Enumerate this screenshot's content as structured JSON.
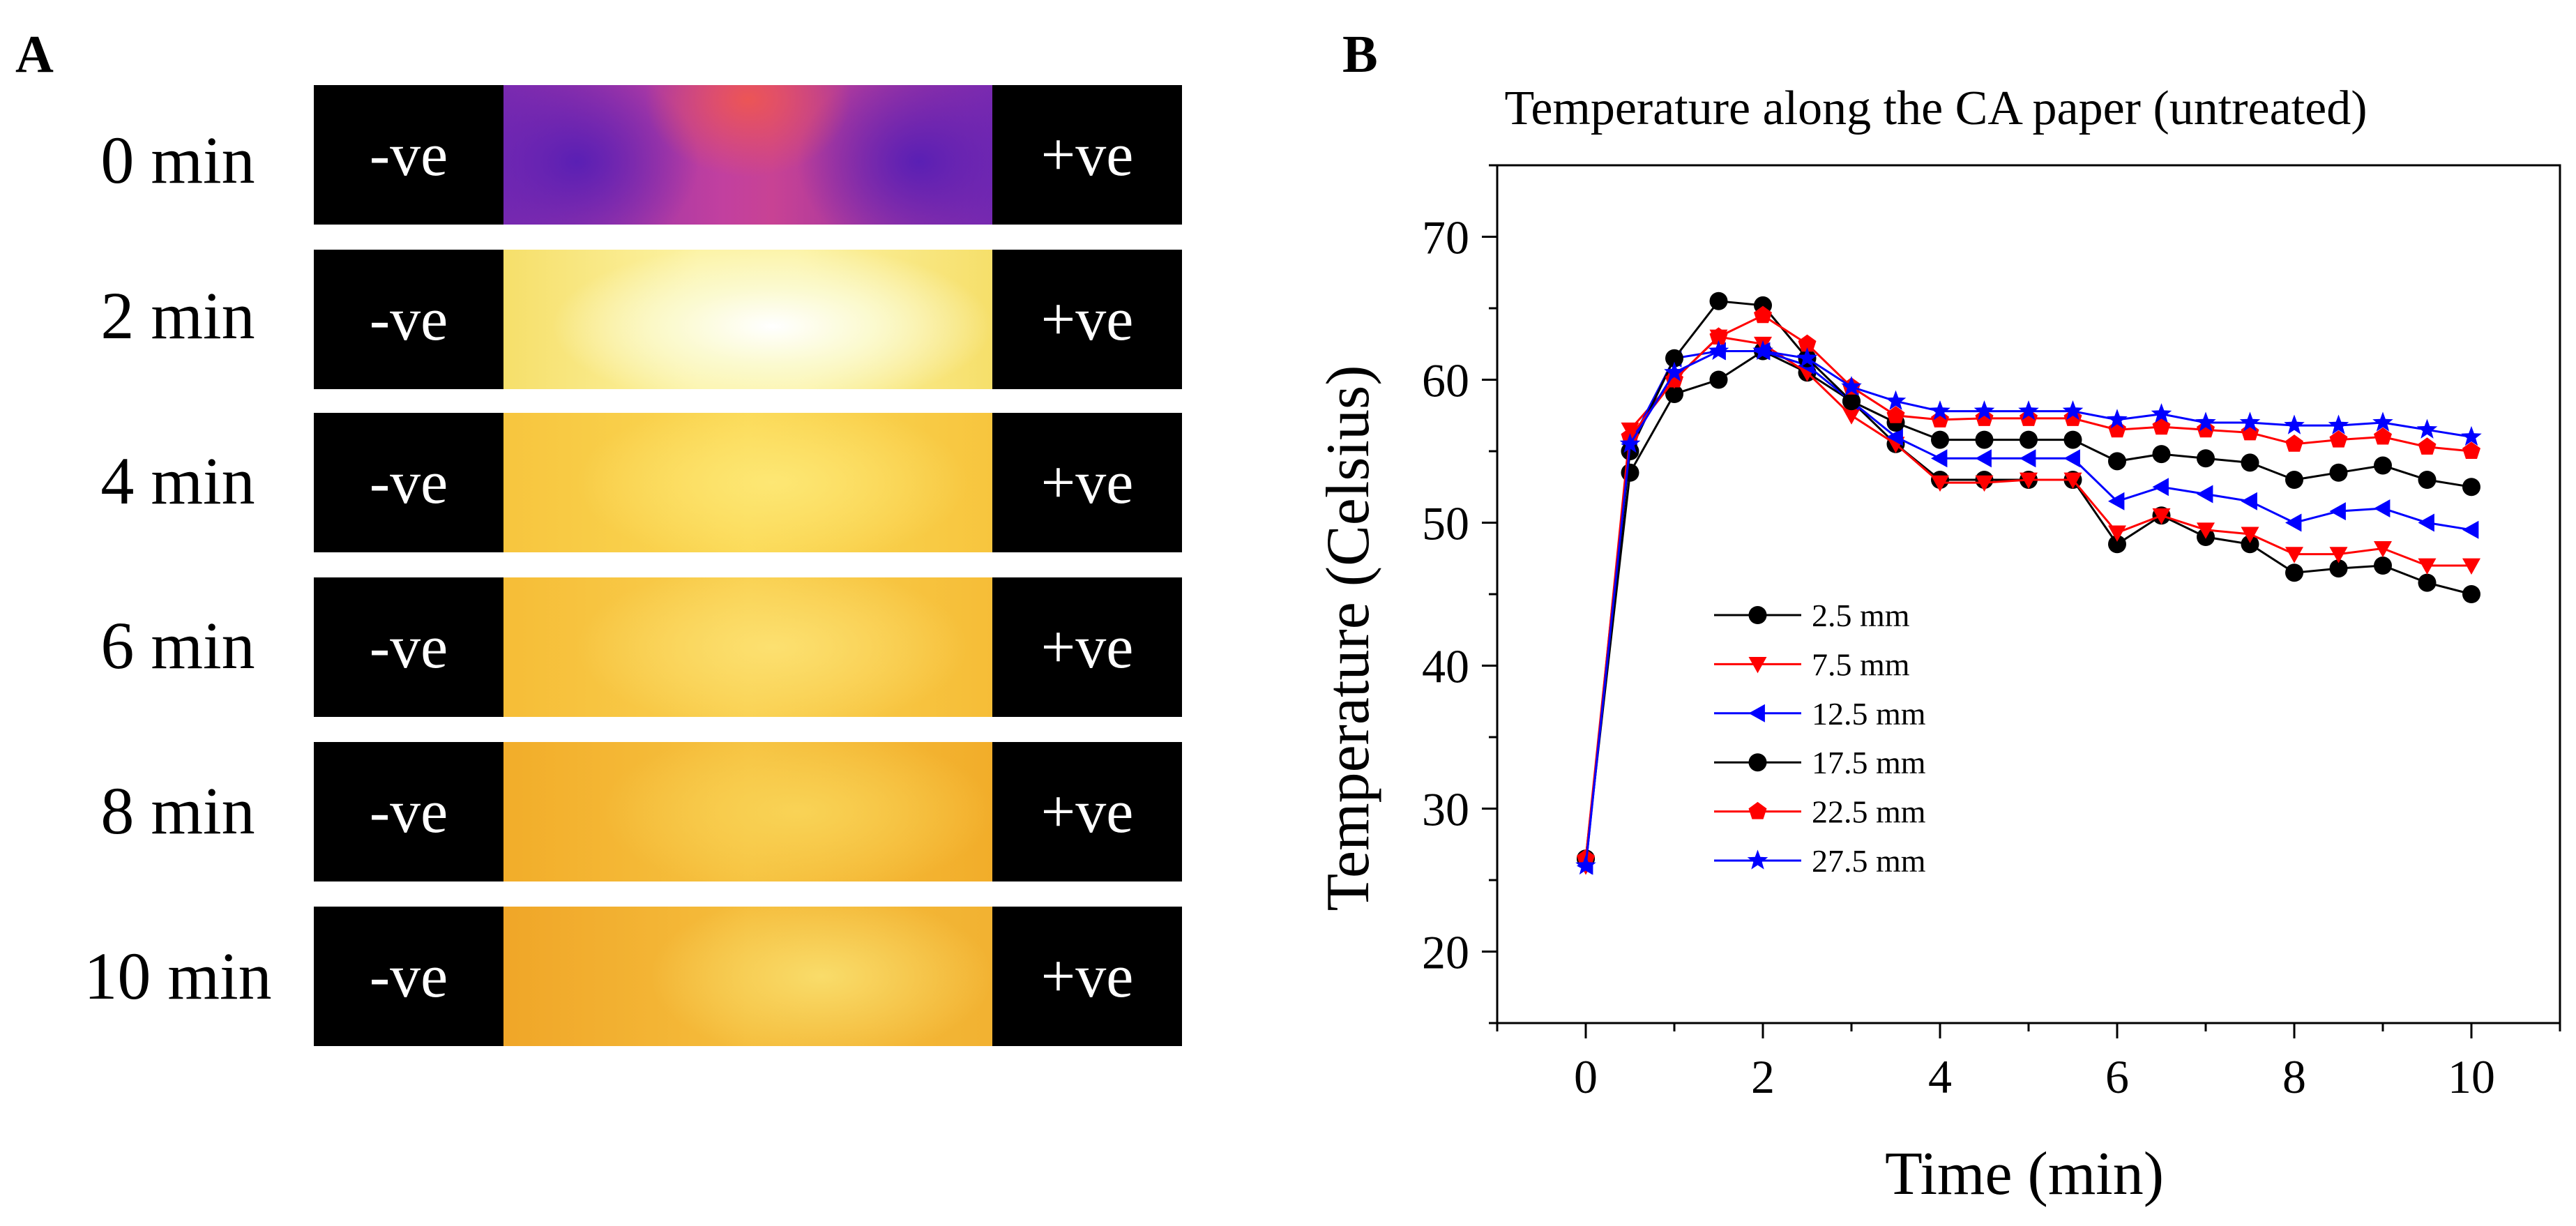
{
  "panel_a": {
    "label": "A",
    "strips": [
      {
        "time": "0 min",
        "neg": "-ve",
        "pos": "+ve",
        "style": "t0"
      },
      {
        "time": "2 min",
        "neg": "-ve",
        "pos": "+ve",
        "style": "t2"
      },
      {
        "time": "4 min",
        "neg": "-ve",
        "pos": "+ve",
        "style": "t4"
      },
      {
        "time": "6 min",
        "neg": "-ve",
        "pos": "+ve",
        "style": "t6"
      },
      {
        "time": "8 min",
        "neg": "-ve",
        "pos": "+ve",
        "style": "t8"
      },
      {
        "time": "10 min",
        "neg": "-ve",
        "pos": "+ve",
        "style": "t10"
      }
    ]
  },
  "panel_b": {
    "label": "B"
  },
  "chart_data": {
    "type": "line",
    "title": "Temperature along the CA paper (untreated)",
    "xlabel": "Time (min)",
    "ylabel": "Temperature (Celsius)",
    "xlim": [
      -1,
      11
    ],
    "ylim": [
      15,
      75
    ],
    "xticks": [
      0,
      2,
      4,
      6,
      8,
      10
    ],
    "yticks": [
      20,
      30,
      40,
      50,
      60,
      70
    ],
    "grid": false,
    "legend_position": "center-left",
    "x": [
      0,
      0.5,
      1,
      1.5,
      2,
      2.5,
      3,
      3.5,
      4,
      4.5,
      5,
      5.5,
      6,
      6.5,
      7,
      7.5,
      8,
      8.5,
      9,
      9.5,
      10
    ],
    "series": [
      {
        "name": "2.5 mm",
        "color": "#000000",
        "marker": "circle",
        "values": [
          26.5,
          53.5,
          59,
          60,
          62,
          60.5,
          58.5,
          55.5,
          53,
          53,
          53,
          53,
          48.5,
          50.5,
          49,
          48.5,
          46.5,
          46.8,
          47,
          45.8,
          45
        ]
      },
      {
        "name": "7.5 mm",
        "color": "#ff0000",
        "marker": "triangle-down",
        "values": [
          26,
          56.5,
          60,
          63,
          62.5,
          60.5,
          57.5,
          55.5,
          52.8,
          52.8,
          53,
          53,
          49.3,
          50.5,
          49.5,
          49.2,
          47.8,
          47.8,
          48.2,
          47,
          47
        ]
      },
      {
        "name": "12.5 mm",
        "color": "#0000ff",
        "marker": "triangle-left",
        "values": [
          26,
          55.5,
          61.5,
          62,
          62,
          61,
          58.5,
          56,
          54.5,
          54.5,
          54.5,
          54.5,
          51.5,
          52.5,
          52,
          51.5,
          50,
          50.8,
          51,
          50,
          49.5
        ]
      },
      {
        "name": "17.5 mm",
        "color": "#000000",
        "marker": "circle",
        "values": [
          26.5,
          55,
          61.5,
          65.5,
          65.2,
          61.5,
          58.5,
          57,
          55.8,
          55.8,
          55.8,
          55.8,
          54.3,
          54.8,
          54.5,
          54.2,
          53,
          53.5,
          54,
          53,
          52.5
        ]
      },
      {
        "name": "22.5 mm",
        "color": "#ff0000",
        "marker": "pentagon",
        "values": [
          26.5,
          56,
          60,
          63,
          64.5,
          62.5,
          59.5,
          57.5,
          57.2,
          57.3,
          57.3,
          57.3,
          56.5,
          56.7,
          56.5,
          56.3,
          55.5,
          55.8,
          56,
          55.3,
          55
        ]
      },
      {
        "name": "27.5 mm",
        "color": "#0000ff",
        "marker": "star",
        "values": [
          26,
          55.5,
          60.5,
          62,
          62,
          61.5,
          59.5,
          58.5,
          57.8,
          57.8,
          57.8,
          57.8,
          57.2,
          57.6,
          57,
          57,
          56.8,
          56.8,
          57,
          56.5,
          56
        ]
      }
    ]
  }
}
